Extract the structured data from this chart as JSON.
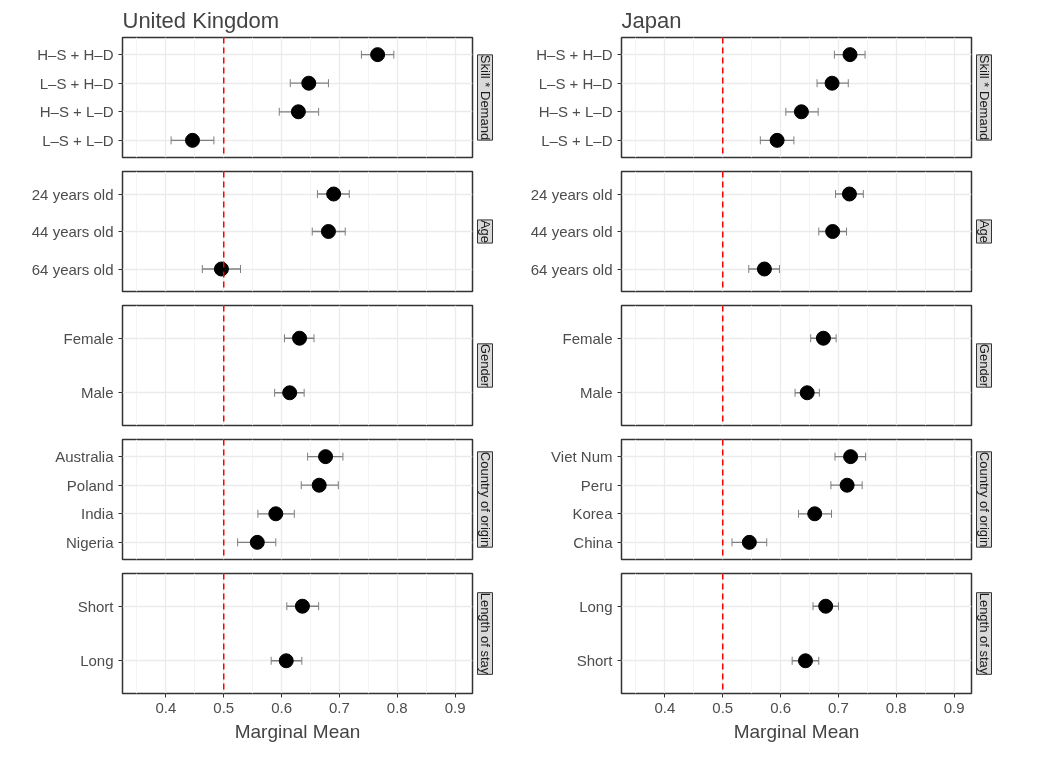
{
  "chart_data": [
    {
      "type": "scatter",
      "orientation": "horizontal",
      "title": "United Kingdom",
      "y2label": "Skill * Demand",
      "categories": [
        "H–S + H–D",
        "L–S + H–D",
        "H–S + L–D",
        "L–S + L–D"
      ],
      "values": [
        0.766,
        0.647,
        0.629,
        0.446
      ],
      "errors": [
        [
          0.738,
          0.794
        ],
        [
          0.615,
          0.681
        ],
        [
          0.596,
          0.664
        ],
        [
          0.409,
          0.483
        ]
      ],
      "color": "#000000",
      "marker": "circle",
      "xlim": [
        0.325,
        0.93
      ],
      "xticks": [
        0.4,
        0.5,
        0.6,
        0.7,
        0.8,
        0.9
      ],
      "grid": true,
      "tick_labels": "y",
      "ref_lines": [
        {
          "axis": "x",
          "value": 0.5,
          "color": "#ff0000",
          "line_style": "dashed"
        }
      ]
    },
    {
      "type": "scatter",
      "orientation": "horizontal",
      "y2label": "Age",
      "categories": [
        "24 years old",
        "44 years old",
        "64 years old"
      ],
      "values": [
        0.69,
        0.681,
        0.496
      ],
      "errors": [
        [
          0.662,
          0.717
        ],
        [
          0.653,
          0.71
        ],
        [
          0.463,
          0.529
        ]
      ],
      "color": "#000000",
      "marker": "circle",
      "xlim": [
        0.325,
        0.93
      ],
      "xticks": [
        0.4,
        0.5,
        0.6,
        0.7,
        0.8,
        0.9
      ],
      "grid": true,
      "tick_labels": "y",
      "ref_lines": [
        {
          "axis": "x",
          "value": 0.5,
          "color": "#ff0000",
          "line_style": "dashed"
        }
      ]
    },
    {
      "type": "scatter",
      "orientation": "horizontal",
      "y2label": "Gender",
      "categories": [
        "Female",
        "Male"
      ],
      "values": [
        0.631,
        0.614
      ],
      "errors": [
        [
          0.605,
          0.656
        ],
        [
          0.588,
          0.639
        ]
      ],
      "color": "#000000",
      "marker": "circle",
      "xlim": [
        0.325,
        0.93
      ],
      "xticks": [
        0.4,
        0.5,
        0.6,
        0.7,
        0.8,
        0.9
      ],
      "grid": true,
      "tick_labels": "y",
      "ref_lines": [
        {
          "axis": "x",
          "value": 0.5,
          "color": "#ff0000",
          "line_style": "dashed"
        }
      ]
    },
    {
      "type": "scatter",
      "orientation": "horizontal",
      "y2label": "Country of origin",
      "categories": [
        "Australia",
        "Poland",
        "India",
        "Nigeria"
      ],
      "values": [
        0.676,
        0.665,
        0.59,
        0.558
      ],
      "errors": [
        [
          0.645,
          0.706
        ],
        [
          0.634,
          0.698
        ],
        [
          0.559,
          0.622
        ],
        [
          0.524,
          0.59
        ]
      ],
      "color": "#000000",
      "marker": "circle",
      "xlim": [
        0.325,
        0.93
      ],
      "xticks": [
        0.4,
        0.5,
        0.6,
        0.7,
        0.8,
        0.9
      ],
      "grid": true,
      "tick_labels": "y",
      "ref_lines": [
        {
          "axis": "x",
          "value": 0.5,
          "color": "#ff0000",
          "line_style": "dashed"
        }
      ]
    },
    {
      "type": "scatter",
      "orientation": "horizontal",
      "xlabel": "Marginal Mean",
      "y2label": "Length of stay",
      "categories": [
        "Short",
        "Long"
      ],
      "values": [
        0.636,
        0.608
      ],
      "errors": [
        [
          0.609,
          0.664
        ],
        [
          0.582,
          0.635
        ]
      ],
      "color": "#000000",
      "marker": "circle",
      "xlim": [
        0.325,
        0.93
      ],
      "xticks": [
        0.4,
        0.5,
        0.6,
        0.7,
        0.8,
        0.9
      ],
      "grid": true,
      "ref_lines": [
        {
          "axis": "x",
          "value": 0.5,
          "color": "#ff0000",
          "line_style": "dashed"
        }
      ]
    },
    {
      "type": "scatter",
      "orientation": "horizontal",
      "title": "Japan",
      "y2label": "Skill * Demand",
      "categories": [
        "H–S + H–D",
        "L–S + H–D",
        "H–S + L–D",
        "L–S + L–D"
      ],
      "values": [
        0.72,
        0.689,
        0.636,
        0.594
      ],
      "errors": [
        [
          0.693,
          0.746
        ],
        [
          0.663,
          0.717
        ],
        [
          0.609,
          0.665
        ],
        [
          0.565,
          0.623
        ]
      ],
      "color": "#000000",
      "marker": "circle",
      "xlim": [
        0.325,
        0.93
      ],
      "xticks": [
        0.4,
        0.5,
        0.6,
        0.7,
        0.8,
        0.9
      ],
      "grid": true,
      "tick_labels": "y",
      "ref_lines": [
        {
          "axis": "x",
          "value": 0.5,
          "color": "#ff0000",
          "line_style": "dashed"
        }
      ]
    },
    {
      "type": "scatter",
      "orientation": "horizontal",
      "y2label": "Age",
      "categories": [
        "24 years old",
        "44 years old",
        "64 years old"
      ],
      "values": [
        0.719,
        0.69,
        0.572
      ],
      "errors": [
        [
          0.695,
          0.743
        ],
        [
          0.666,
          0.714
        ],
        [
          0.545,
          0.598
        ]
      ],
      "color": "#000000",
      "marker": "circle",
      "xlim": [
        0.325,
        0.93
      ],
      "xticks": [
        0.4,
        0.5,
        0.6,
        0.7,
        0.8,
        0.9
      ],
      "grid": true,
      "tick_labels": "y",
      "ref_lines": [
        {
          "axis": "x",
          "value": 0.5,
          "color": "#ff0000",
          "line_style": "dashed"
        }
      ]
    },
    {
      "type": "scatter",
      "orientation": "horizontal",
      "y2label": "Gender",
      "categories": [
        "Female",
        "Male"
      ],
      "values": [
        0.674,
        0.646
      ],
      "errors": [
        [
          0.652,
          0.696
        ],
        [
          0.625,
          0.667
        ]
      ],
      "color": "#000000",
      "marker": "circle",
      "xlim": [
        0.325,
        0.93
      ],
      "xticks": [
        0.4,
        0.5,
        0.6,
        0.7,
        0.8,
        0.9
      ],
      "grid": true,
      "tick_labels": "y",
      "ref_lines": [
        {
          "axis": "x",
          "value": 0.5,
          "color": "#ff0000",
          "line_style": "dashed"
        }
      ]
    },
    {
      "type": "scatter",
      "orientation": "horizontal",
      "y2label": "Country of origin",
      "categories": [
        "Viet Num",
        "Peru",
        "Korea",
        "China"
      ],
      "values": [
        0.721,
        0.715,
        0.659,
        0.546
      ],
      "errors": [
        [
          0.694,
          0.747
        ],
        [
          0.687,
          0.741
        ],
        [
          0.631,
          0.688
        ],
        [
          0.516,
          0.576
        ]
      ],
      "color": "#000000",
      "marker": "circle",
      "xlim": [
        0.325,
        0.93
      ],
      "xticks": [
        0.4,
        0.5,
        0.6,
        0.7,
        0.8,
        0.9
      ],
      "grid": true,
      "tick_labels": "y",
      "ref_lines": [
        {
          "axis": "x",
          "value": 0.5,
          "color": "#ff0000",
          "line_style": "dashed"
        }
      ]
    },
    {
      "type": "scatter",
      "orientation": "horizontal",
      "xlabel": "Marginal Mean",
      "y2label": "Length of stay",
      "categories": [
        "Long",
        "Short"
      ],
      "values": [
        0.678,
        0.643
      ],
      "errors": [
        [
          0.656,
          0.7
        ],
        [
          0.62,
          0.666
        ]
      ],
      "color": "#000000",
      "marker": "circle",
      "xlim": [
        0.325,
        0.93
      ],
      "xticks": [
        0.4,
        0.5,
        0.6,
        0.7,
        0.8,
        0.9
      ],
      "grid": true,
      "ref_lines": [
        {
          "axis": "x",
          "value": 0.5,
          "color": "#ff0000",
          "line_style": "dashed"
        }
      ]
    }
  ]
}
